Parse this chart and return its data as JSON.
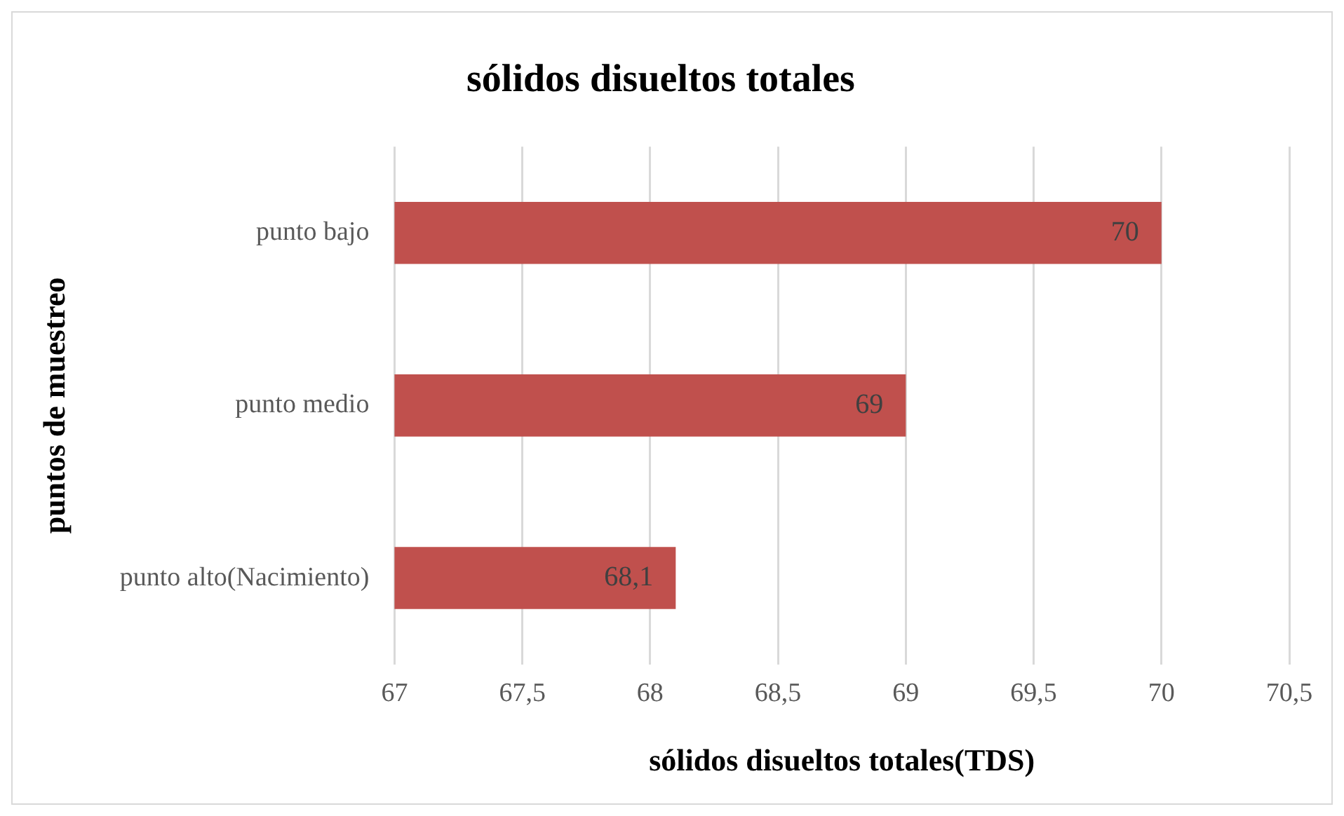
{
  "chart_data": {
    "type": "bar",
    "orientation": "horizontal",
    "title": "sólidos disueltos totales",
    "xlabel": "sólidos disueltos totales(TDS)",
    "ylabel": "puntos de muestreo",
    "categories": [
      "punto bajo",
      "punto medio",
      "punto alto(Nacimiento)"
    ],
    "values": [
      70,
      69,
      68.1
    ],
    "value_labels": [
      "70",
      "69",
      "68,1"
    ],
    "color": "#c0504d",
    "xlim": [
      67,
      70.5
    ],
    "xticks": [
      67,
      {
        "value": 67.5,
        "label": "67,5"
      },
      68,
      {
        "value": 68.5,
        "label": "68,5"
      },
      69,
      {
        "value": 69.5,
        "label": "69,5"
      },
      70,
      {
        "value": 70.5,
        "label": "70,5"
      }
    ],
    "grid": "x",
    "legend": false
  }
}
